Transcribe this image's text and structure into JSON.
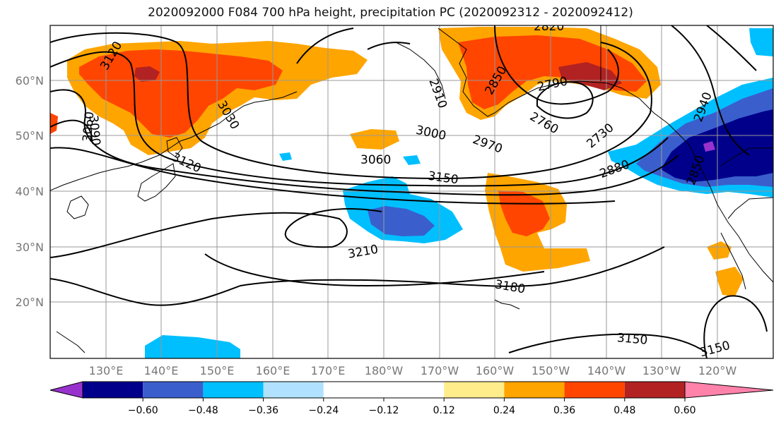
{
  "title": "2020092000 F084 700 hPa height, precipitation PC (2020092312 - 2020092412)",
  "map": {
    "lat_labels": [
      "60°N",
      "50°N",
      "40°N",
      "30°N",
      "20°N"
    ],
    "lon_labels": [
      "130°E",
      "140°E",
      "150°E",
      "160°E",
      "170°E",
      "180°W",
      "170°W",
      "160°W",
      "150°W",
      "140°W",
      "130°W",
      "120°W"
    ],
    "contour_labels": [
      "3120",
      "2820",
      "2910",
      "2850",
      "2790",
      "2940",
      "3060",
      "3090",
      "3030",
      "3000",
      "2970",
      "2760",
      "2730",
      "3120",
      "3060",
      "2880",
      "3150",
      "3210",
      "3180",
      "3150",
      "3150",
      "2850"
    ]
  },
  "colorbar": {
    "colors": [
      "#9932cc",
      "#00008b",
      "#3a5fcd",
      "#00bfff",
      "#b0e2ff",
      "#ffffff",
      "#ffec8b",
      "#ffa500",
      "#ff4500",
      "#b22222",
      "#ff82ab"
    ],
    "tick_labels": [
      "−0.60",
      "−0.48",
      "−0.36",
      "−0.24",
      "−0.12",
      "0.12",
      "0.24",
      "0.36",
      "0.48",
      "0.60"
    ]
  }
}
